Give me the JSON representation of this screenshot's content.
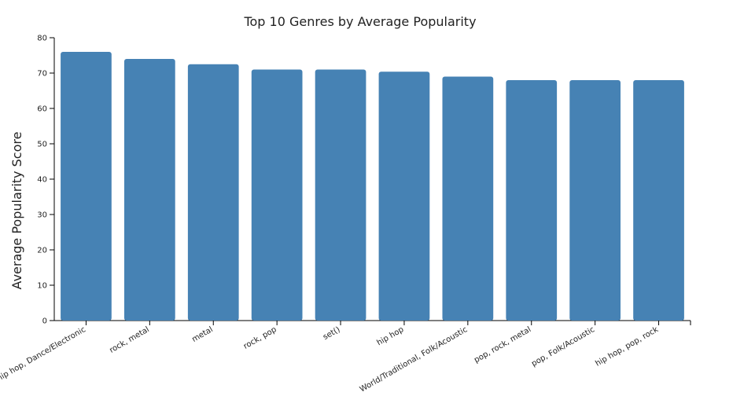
{
  "chart_data": {
    "type": "bar",
    "title": "Top 10 Genres by Average Popularity",
    "xlabel": "",
    "ylabel": "Average Popularity Score",
    "categories": [
      "hip hop, Dance/Electronic",
      "rock, metal",
      "metal",
      "rock, pop",
      "set()",
      "hip hop",
      "World/Traditional, Folk/Acoustic",
      "pop, rock, metal",
      "pop, Folk/Acoustic",
      "hip hop, pop, rock"
    ],
    "values": [
      76,
      74,
      72.5,
      71,
      71,
      70.4,
      69,
      68,
      68,
      68
    ],
    "ylim": [
      0,
      80
    ],
    "yticks": [
      0,
      10,
      20,
      30,
      40,
      50,
      60,
      70,
      80
    ],
    "ytick_labels": [
      "0",
      "10",
      "20",
      "30",
      "40",
      "50",
      "60",
      "70",
      "80"
    ],
    "grid": false,
    "legend": "none",
    "bar_color": "#4682b4",
    "axis_color": "#000000"
  }
}
